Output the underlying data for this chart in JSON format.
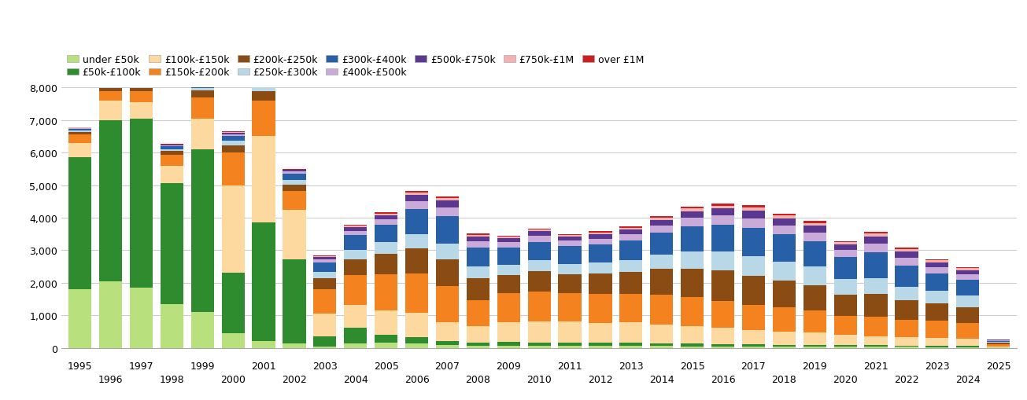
{
  "years": [
    1995,
    1996,
    1997,
    1998,
    1999,
    2000,
    2001,
    2002,
    2003,
    2004,
    2005,
    2006,
    2007,
    2008,
    2009,
    2010,
    2011,
    2012,
    2013,
    2014,
    2015,
    2016,
    2017,
    2018,
    2019,
    2020,
    2021,
    2022,
    2023,
    2024,
    2025
  ],
  "categories": [
    "under £50k",
    "£50k-£100k",
    "£100k-£150k",
    "£150k-£200k",
    "£200k-£250k",
    "£250k-£300k",
    "£300k-£400k",
    "£400k-£500k",
    "£500k-£750k",
    "£750k-£1M",
    "over £1M"
  ],
  "colors": [
    "#b8e07c",
    "#2e8b2e",
    "#fdd9a0",
    "#f4821f",
    "#8b4c13",
    "#b8d8e8",
    "#2860a8",
    "#caaad8",
    "#5b3890",
    "#f5b0b0",
    "#cc2020"
  ],
  "data": {
    "under £50k": [
      1800,
      2050,
      1850,
      1350,
      1100,
      450,
      200,
      130,
      50,
      130,
      150,
      130,
      80,
      70,
      70,
      60,
      60,
      55,
      60,
      55,
      50,
      50,
      45,
      40,
      40,
      35,
      30,
      30,
      25,
      20,
      10
    ],
    "£50k-£100k": [
      4050,
      4950,
      5200,
      3700,
      5000,
      1850,
      3650,
      2600,
      300,
      500,
      250,
      200,
      120,
      100,
      110,
      110,
      110,
      100,
      100,
      90,
      80,
      70,
      60,
      60,
      55,
      50,
      50,
      45,
      40,
      35,
      5
    ],
    "£100k-£150k": [
      450,
      600,
      500,
      550,
      950,
      2700,
      2650,
      1500,
      700,
      700,
      750,
      750,
      600,
      500,
      600,
      650,
      650,
      620,
      620,
      580,
      540,
      490,
      440,
      410,
      380,
      320,
      280,
      250,
      230,
      220,
      30
    ],
    "£150k-£200k": [
      250,
      280,
      330,
      340,
      650,
      1000,
      1100,
      580,
      750,
      900,
      1100,
      1200,
      1100,
      800,
      900,
      920,
      870,
      880,
      880,
      920,
      880,
      830,
      780,
      730,
      680,
      580,
      600,
      540,
      540,
      480,
      60
    ],
    "£200k-£250k": [
      90,
      100,
      110,
      100,
      200,
      230,
      280,
      200,
      350,
      500,
      650,
      780,
      830,
      680,
      560,
      620,
      580,
      630,
      680,
      780,
      880,
      930,
      880,
      830,
      780,
      660,
      700,
      590,
      540,
      490,
      45
    ],
    "£250k-£300k": [
      40,
      50,
      60,
      65,
      90,
      130,
      200,
      150,
      180,
      290,
      340,
      430,
      480,
      360,
      300,
      330,
      310,
      330,
      360,
      430,
      530,
      580,
      600,
      580,
      560,
      480,
      490,
      420,
      380,
      360,
      30
    ],
    "£300k-£400k": [
      50,
      60,
      70,
      80,
      110,
      150,
      240,
      190,
      290,
      440,
      530,
      780,
      830,
      570,
      530,
      570,
      540,
      560,
      600,
      680,
      780,
      830,
      880,
      830,
      780,
      660,
      780,
      660,
      530,
      480,
      40
    ],
    "£400k-£500k": [
      18,
      22,
      28,
      30,
      45,
      58,
      75,
      65,
      95,
      140,
      170,
      240,
      270,
      190,
      170,
      180,
      170,
      180,
      190,
      220,
      260,
      280,
      300,
      280,
      270,
      220,
      270,
      230,
      190,
      170,
      15
    ],
    "£500k-£750k": [
      12,
      18,
      22,
      26,
      36,
      46,
      56,
      46,
      70,
      105,
      135,
      190,
      210,
      150,
      130,
      142,
      132,
      138,
      148,
      172,
      200,
      220,
      240,
      220,
      210,
      170,
      220,
      190,
      152,
      138,
      12
    ],
    "£750k-£1M": [
      5,
      7,
      9,
      10,
      14,
      16,
      22,
      18,
      28,
      42,
      52,
      76,
      86,
      56,
      52,
      56,
      52,
      55,
      59,
      68,
      80,
      88,
      96,
      88,
      84,
      68,
      88,
      76,
      62,
      55,
      6
    ],
    "over £1M": [
      4,
      6,
      7,
      9,
      10,
      12,
      16,
      13,
      20,
      28,
      32,
      48,
      52,
      36,
      30,
      32,
      30,
      32,
      36,
      42,
      50,
      56,
      60,
      56,
      52,
      42,
      54,
      48,
      38,
      34,
      4
    ]
  },
  "ylim": [
    0,
    8000
  ],
  "yticks": [
    0,
    1000,
    2000,
    3000,
    4000,
    5000,
    6000,
    7000,
    8000
  ],
  "background_color": "#ffffff",
  "grid_color": "#cccccc"
}
